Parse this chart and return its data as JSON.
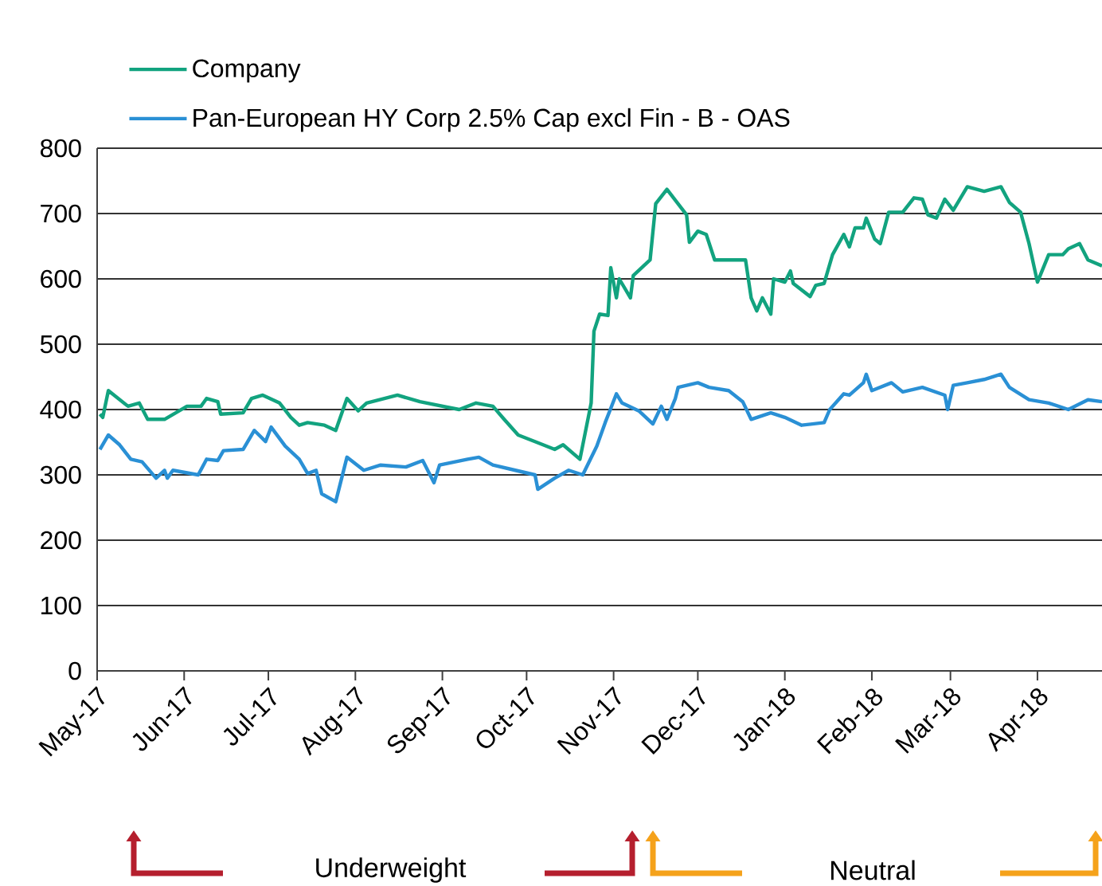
{
  "chart_data": {
    "type": "line",
    "series": [
      {
        "name": "Company",
        "color": "#12a37f",
        "x": [
          "2017-05-02",
          "2017-05-03",
          "2017-05-05",
          "2017-05-12",
          "2017-05-16",
          "2017-05-19",
          "2017-05-25",
          "2017-06-02",
          "2017-06-07",
          "2017-06-09",
          "2017-06-13",
          "2017-06-14",
          "2017-06-22",
          "2017-06-25",
          "2017-06-29",
          "2017-07-05",
          "2017-07-09",
          "2017-07-12",
          "2017-07-15",
          "2017-07-21",
          "2017-07-25",
          "2017-07-29",
          "2017-08-02",
          "2017-08-05",
          "2017-08-16",
          "2017-08-24",
          "2017-09-07",
          "2017-09-13",
          "2017-09-19",
          "2017-09-23",
          "2017-09-28",
          "2017-10-04",
          "2017-10-11",
          "2017-10-14",
          "2017-10-20",
          "2017-10-24",
          "2017-10-25",
          "2017-10-27",
          "2017-10-30",
          "2017-10-31",
          "2017-11-02",
          "2017-11-03",
          "2017-11-07",
          "2017-11-08",
          "2017-11-14",
          "2017-11-16",
          "2017-11-20",
          "2017-11-27",
          "2017-11-28",
          "2017-12-01",
          "2017-12-04",
          "2017-12-07",
          "2017-12-14",
          "2017-12-18",
          "2017-12-20",
          "2017-12-22",
          "2017-12-24",
          "2017-12-27",
          "2017-12-28",
          "2018-01-01",
          "2018-01-03",
          "2018-01-04",
          "2018-01-10",
          "2018-01-12",
          "2018-01-15",
          "2018-01-18",
          "2018-01-22",
          "2018-01-24",
          "2018-01-26",
          "2018-01-29",
          "2018-01-30",
          "2018-02-02",
          "2018-02-04",
          "2018-02-07",
          "2018-02-12",
          "2018-02-16",
          "2018-02-19",
          "2018-02-21",
          "2018-02-24",
          "2018-02-27",
          "2018-03-02",
          "2018-03-07",
          "2018-03-13",
          "2018-03-19",
          "2018-03-22",
          "2018-03-26",
          "2018-03-29",
          "2018-04-01",
          "2018-04-05",
          "2018-04-10",
          "2018-04-12",
          "2018-04-16",
          "2018-04-19",
          "2018-04-24"
        ],
        "values": [
          393,
          388,
          429,
          405,
          410,
          385,
          385,
          405,
          405,
          417,
          412,
          393,
          395,
          417,
          422,
          410,
          388,
          376,
          380,
          376,
          368,
          417,
          398,
          410,
          422,
          412,
          400,
          410,
          405,
          385,
          361,
          351,
          339,
          346,
          324,
          410,
          520,
          546,
          544,
          617,
          571,
          600,
          571,
          605,
          629,
          715,
          737,
          698,
          656,
          673,
          668,
          629,
          629,
          629,
          571,
          551,
          571,
          546,
          600,
          595,
          612,
          593,
          573,
          590,
          593,
          637,
          668,
          649,
          678,
          678,
          693,
          661,
          654,
          702,
          702,
          724,
          722,
          698,
          693,
          722,
          705,
          741,
          734,
          741,
          717,
          702,
          654,
          595,
          637,
          637,
          646,
          654,
          629,
          620
        ]
      },
      {
        "name": "Pan-European HY Corp 2.5% Cap excl Fin - B - OAS",
        "color": "#2a90d5",
        "x": [
          "2017-05-02",
          "2017-05-05",
          "2017-05-09",
          "2017-05-13",
          "2017-05-17",
          "2017-05-22",
          "2017-05-25",
          "2017-05-26",
          "2017-05-28",
          "2017-06-06",
          "2017-06-09",
          "2017-06-13",
          "2017-06-15",
          "2017-06-22",
          "2017-06-26",
          "2017-06-30",
          "2017-07-02",
          "2017-07-07",
          "2017-07-12",
          "2017-07-15",
          "2017-07-18",
          "2017-07-20",
          "2017-07-25",
          "2017-07-29",
          "2017-08-04",
          "2017-08-10",
          "2017-08-19",
          "2017-08-25",
          "2017-08-29",
          "2017-08-31",
          "2017-09-10",
          "2017-09-14",
          "2017-09-19",
          "2017-09-27",
          "2017-10-04",
          "2017-10-05",
          "2017-10-11",
          "2017-10-16",
          "2017-10-21",
          "2017-10-26",
          "2017-10-29",
          "2017-11-02",
          "2017-11-04",
          "2017-11-10",
          "2017-11-15",
          "2017-11-18",
          "2017-11-20",
          "2017-11-23",
          "2017-11-24",
          "2017-12-01",
          "2017-12-05",
          "2017-12-12",
          "2017-12-17",
          "2017-12-20",
          "2017-12-27",
          "2018-01-01",
          "2018-01-07",
          "2018-01-15",
          "2018-01-17",
          "2018-01-22",
          "2018-01-24",
          "2018-01-29",
          "2018-01-30",
          "2018-02-01",
          "2018-02-08",
          "2018-02-12",
          "2018-02-19",
          "2018-02-27",
          "2018-02-28",
          "2018-03-02",
          "2018-03-07",
          "2018-03-13",
          "2018-03-19",
          "2018-03-22",
          "2018-03-29",
          "2018-04-05",
          "2018-04-12",
          "2018-04-19",
          "2018-04-24"
        ],
        "values": [
          339,
          361,
          346,
          324,
          320,
          295,
          307,
          295,
          307,
          300,
          324,
          322,
          337,
          339,
          368,
          351,
          373,
          344,
          324,
          302,
          307,
          271,
          259,
          327,
          307,
          315,
          312,
          322,
          288,
          315,
          324,
          327,
          315,
          307,
          300,
          278,
          295,
          307,
          300,
          344,
          380,
          424,
          410,
          398,
          378,
          405,
          385,
          417,
          434,
          441,
          434,
          429,
          412,
          385,
          395,
          388,
          376,
          380,
          400,
          424,
          422,
          441,
          454,
          429,
          441,
          427,
          434,
          422,
          400,
          437,
          441,
          446,
          454,
          434,
          415,
          410,
          400,
          415,
          412
        ]
      }
    ],
    "xlim": [
      "2017-05-01",
      "2018-04-24"
    ],
    "xticks": [
      {
        "value": "2017-05-01",
        "label": "May-17"
      },
      {
        "value": "2017-06-01",
        "label": "Jun-17"
      },
      {
        "value": "2017-07-01",
        "label": "Jul-17"
      },
      {
        "value": "2017-08-01",
        "label": "Aug-17"
      },
      {
        "value": "2017-09-01",
        "label": "Sep-17"
      },
      {
        "value": "2017-10-01",
        "label": "Oct-17"
      },
      {
        "value": "2017-11-01",
        "label": "Nov-17"
      },
      {
        "value": "2017-12-01",
        "label": "Dec-17"
      },
      {
        "value": "2018-01-01",
        "label": "Jan-18"
      },
      {
        "value": "2018-02-01",
        "label": "Feb-18"
      },
      {
        "value": "2018-03-01",
        "label": "Mar-18"
      },
      {
        "value": "2018-04-01",
        "label": "Apr-18"
      }
    ],
    "ylim": [
      0,
      800
    ],
    "yticks": [
      0,
      100,
      200,
      300,
      400,
      500,
      600,
      700,
      800
    ],
    "grid": "y",
    "legend": "top left",
    "annotations": [
      "Underweight",
      "Neutral"
    ]
  }
}
